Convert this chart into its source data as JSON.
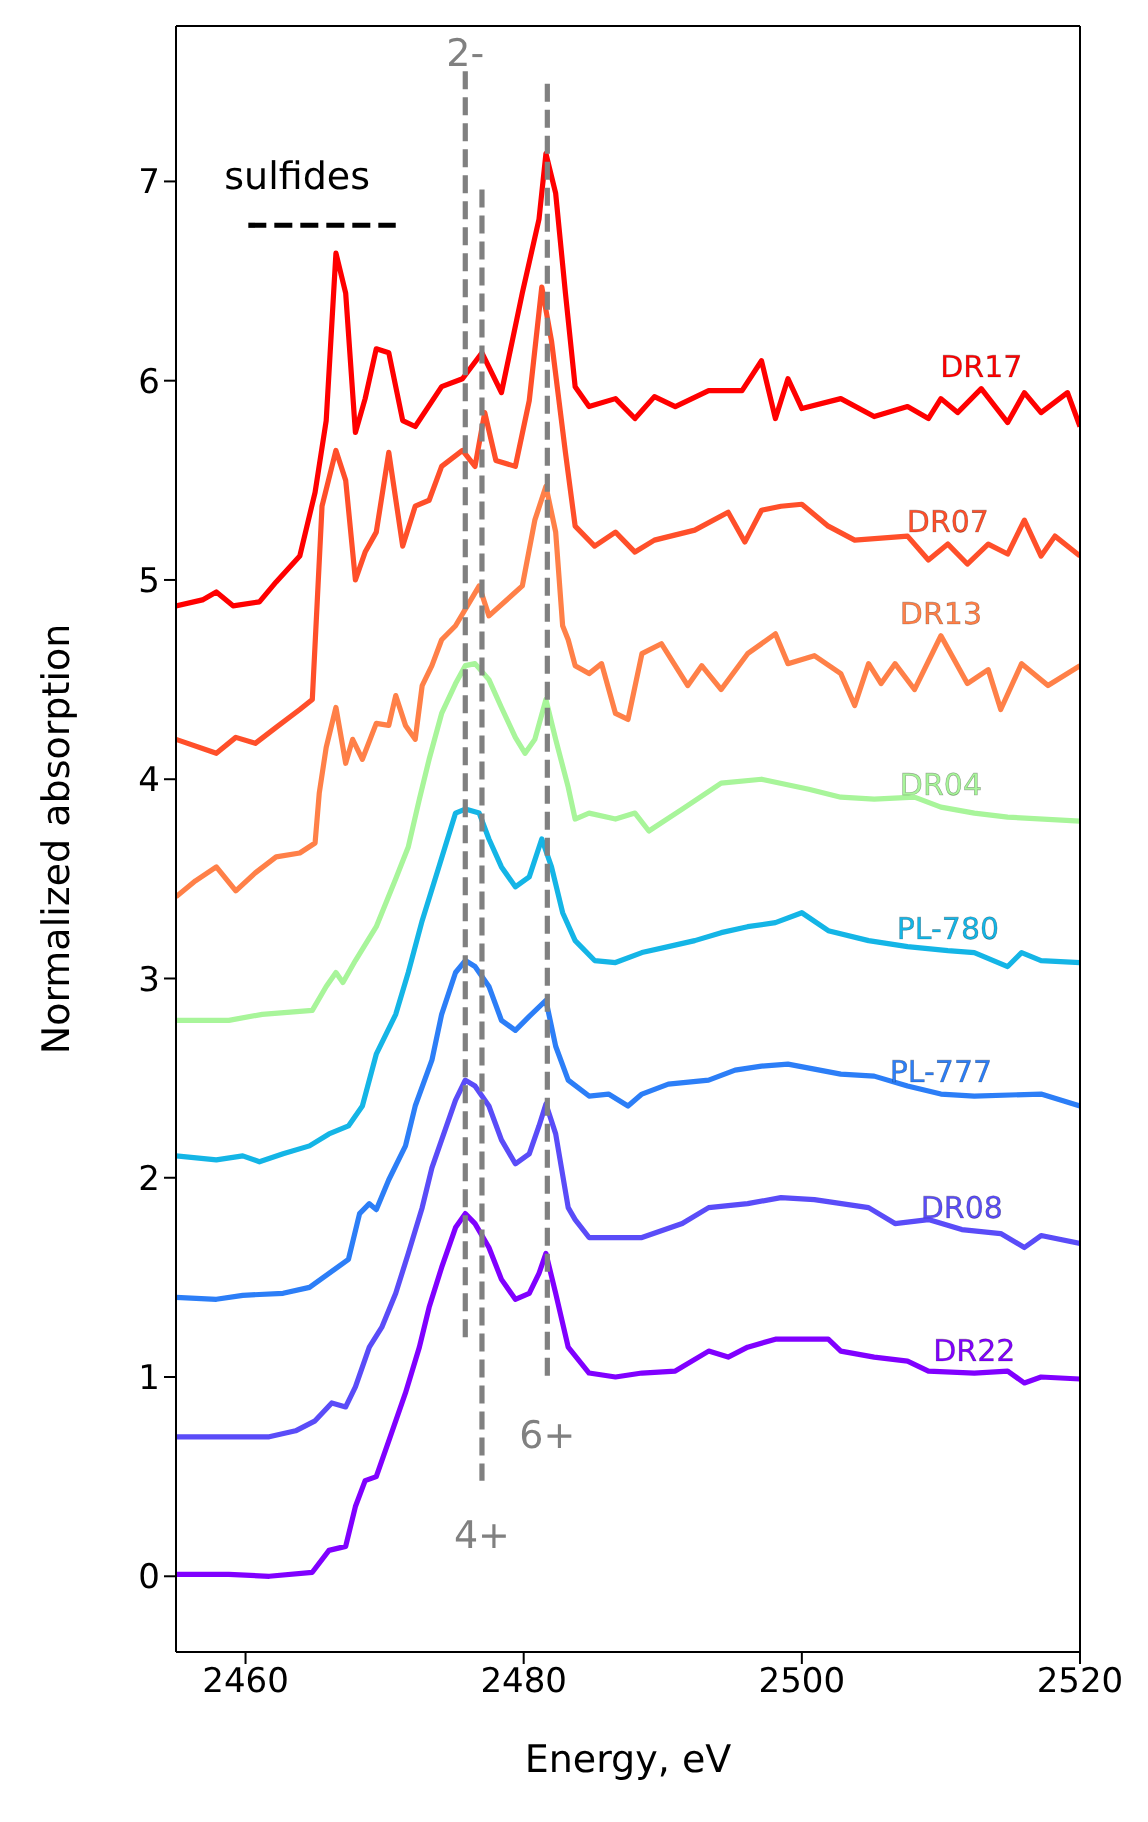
{
  "chart_data": {
    "type": "line",
    "xlabel": "Energy, eV",
    "ylabel": "Normalized absorption",
    "xlim": [
      2455,
      2520
    ],
    "xticks": [
      2460,
      2480,
      2500,
      2520
    ],
    "ylim": [
      -0.38,
      7.78
    ],
    "yticks": [
      0,
      1,
      2,
      3,
      4,
      5,
      6,
      7
    ],
    "grid": false,
    "line_style": "solid",
    "marker": "none",
    "series": [
      {
        "name": "DR17",
        "color": "#ff0000",
        "x": [
          2455,
          2456.9,
          2457.9,
          2459.1,
          2461.0,
          2462.2,
          2463.9,
          2465.0,
          2465.8,
          2466.5,
          2467.2,
          2467.9,
          2468.6,
          2469.4,
          2470.3,
          2471.3,
          2472.2,
          2474.1,
          2475.6,
          2477.0,
          2478.4,
          2479.9,
          2481.1,
          2481.6,
          2482.3,
          2483.0,
          2483.7,
          2484.7,
          2486.6,
          2488.0,
          2489.4,
          2490.9,
          2493.3,
          2495.7,
          2497.1,
          2498.1,
          2499.0,
          2500.0,
          2502.8,
          2505.2,
          2507.6,
          2509.1,
          2510.0,
          2511.2,
          2512.9,
          2514.8,
          2516.0,
          2517.2,
          2519.1,
          2520
        ],
        "values": [
          4.87,
          4.9,
          4.94,
          4.87,
          4.89,
          4.99,
          5.12,
          5.44,
          5.8,
          6.64,
          6.44,
          5.74,
          5.91,
          6.16,
          6.14,
          5.8,
          5.77,
          5.97,
          6.01,
          6.14,
          5.94,
          6.44,
          6.81,
          7.14,
          6.94,
          6.44,
          5.97,
          5.87,
          5.91,
          5.81,
          5.92,
          5.87,
          5.95,
          5.95,
          6.1,
          5.81,
          6.01,
          5.86,
          5.91,
          5.82,
          5.87,
          5.81,
          5.91,
          5.84,
          5.96,
          5.79,
          5.94,
          5.84,
          5.94,
          5.77
        ]
      },
      {
        "name": "DR07",
        "color": "#ff4f2a",
        "x": [
          2455,
          2457.9,
          2459.3,
          2460.7,
          2462.2,
          2463.9,
          2464.8,
          2465.5,
          2466.5,
          2467.2,
          2467.9,
          2468.6,
          2469.4,
          2470.3,
          2471.3,
          2472.2,
          2473.2,
          2474.1,
          2475.6,
          2476.5,
          2477.2,
          2478.0,
          2479.4,
          2480.4,
          2481.3,
          2482.0,
          2483.0,
          2483.7,
          2485.1,
          2486.6,
          2488.0,
          2489.4,
          2492.3,
          2494.7,
          2495.9,
          2497.1,
          2498.5,
          2500.0,
          2501.9,
          2503.8,
          2507.6,
          2509.1,
          2510.5,
          2511.9,
          2513.4,
          2514.8,
          2516.0,
          2517.2,
          2518.2,
          2520
        ],
        "values": [
          4.2,
          4.13,
          4.21,
          4.18,
          4.26,
          4.35,
          4.4,
          5.37,
          5.65,
          5.5,
          5.0,
          5.14,
          5.24,
          5.64,
          5.17,
          5.37,
          5.4,
          5.57,
          5.65,
          5.57,
          5.84,
          5.6,
          5.57,
          5.9,
          6.47,
          6.2,
          5.64,
          5.27,
          5.17,
          5.24,
          5.14,
          5.2,
          5.25,
          5.34,
          5.19,
          5.35,
          5.37,
          5.38,
          5.27,
          5.2,
          5.22,
          5.1,
          5.18,
          5.08,
          5.18,
          5.13,
          5.3,
          5.12,
          5.22,
          5.12
        ]
      },
      {
        "name": "DR13",
        "color": "#ff8048",
        "x": [
          2455,
          2456.4,
          2457.9,
          2459.3,
          2460.7,
          2462.2,
          2463.9,
          2465.0,
          2465.3,
          2465.8,
          2466.5,
          2467.2,
          2467.7,
          2468.4,
          2469.4,
          2470.3,
          2470.8,
          2471.5,
          2472.2,
          2472.7,
          2473.4,
          2474.1,
          2475.1,
          2476.8,
          2477.5,
          2479.9,
          2480.8,
          2481.6,
          2482.3,
          2482.8,
          2483.2,
          2483.7,
          2484.7,
          2485.6,
          2486.6,
          2487.5,
          2488.5,
          2489.9,
          2491.8,
          2492.8,
          2494.2,
          2496.1,
          2498.1,
          2499.0,
          2500.9,
          2502.8,
          2503.8,
          2504.8,
          2505.7,
          2506.7,
          2508.1,
          2510.0,
          2511.9,
          2513.4,
          2514.3,
          2515.8,
          2517.7,
          2520
        ],
        "values": [
          3.41,
          3.49,
          3.56,
          3.44,
          3.53,
          3.61,
          3.63,
          3.68,
          3.93,
          4.16,
          4.36,
          4.08,
          4.2,
          4.1,
          4.28,
          4.27,
          4.42,
          4.27,
          4.2,
          4.47,
          4.57,
          4.7,
          4.77,
          4.97,
          4.82,
          4.97,
          5.3,
          5.47,
          5.24,
          4.77,
          4.7,
          4.57,
          4.53,
          4.58,
          4.33,
          4.3,
          4.63,
          4.68,
          4.47,
          4.57,
          4.45,
          4.63,
          4.73,
          4.58,
          4.62,
          4.53,
          4.37,
          4.58,
          4.48,
          4.58,
          4.45,
          4.72,
          4.48,
          4.55,
          4.35,
          4.58,
          4.47,
          4.57
        ]
      },
      {
        "name": "DR04",
        "color": "#a8f59a",
        "x": [
          2455,
          2458.8,
          2461.2,
          2464.8,
          2465.8,
          2466.5,
          2467.0,
          2467.9,
          2469.4,
          2470.8,
          2471.7,
          2472.5,
          2473.2,
          2474.1,
          2475.1,
          2475.8,
          2476.5,
          2477.5,
          2478.4,
          2479.4,
          2480.1,
          2480.8,
          2481.6,
          2482.3,
          2483.2,
          2483.7,
          2484.7,
          2486.6,
          2488.0,
          2489.0,
          2491.4,
          2494.2,
          2497.1,
          2500.5,
          2502.8,
          2505.2,
          2508.1,
          2510.0,
          2512.4,
          2514.8,
          2520
        ],
        "values": [
          2.79,
          2.79,
          2.82,
          2.84,
          2.96,
          3.03,
          2.98,
          3.09,
          3.26,
          3.5,
          3.66,
          3.9,
          4.1,
          4.33,
          4.48,
          4.57,
          4.58,
          4.5,
          4.36,
          4.21,
          4.13,
          4.2,
          4.4,
          4.2,
          3.96,
          3.8,
          3.83,
          3.8,
          3.83,
          3.74,
          3.85,
          3.98,
          4.0,
          3.95,
          3.91,
          3.9,
          3.91,
          3.86,
          3.83,
          3.81,
          3.79
        ]
      },
      {
        "name": "PL-780",
        "color": "#14b5e6",
        "x": [
          2455,
          2457.9,
          2459.8,
          2461.0,
          2462.7,
          2464.6,
          2466.0,
          2467.4,
          2468.4,
          2469.4,
          2470.8,
          2471.7,
          2472.7,
          2473.9,
          2475.1,
          2475.8,
          2476.8,
          2477.5,
          2478.4,
          2479.4,
          2480.4,
          2481.3,
          2482.0,
          2482.8,
          2483.7,
          2485.1,
          2486.6,
          2488.5,
          2490.4,
          2492.3,
          2494.2,
          2496.1,
          2498.1,
          2500.0,
          2501.9,
          2504.8,
          2507.6,
          2510.5,
          2512.4,
          2514.8,
          2515.8,
          2517.2,
          2520
        ],
        "values": [
          2.11,
          2.09,
          2.11,
          2.08,
          2.12,
          2.16,
          2.22,
          2.26,
          2.36,
          2.62,
          2.82,
          3.03,
          3.29,
          3.56,
          3.83,
          3.85,
          3.83,
          3.7,
          3.56,
          3.46,
          3.51,
          3.7,
          3.56,
          3.33,
          3.19,
          3.09,
          3.08,
          3.13,
          3.16,
          3.19,
          3.23,
          3.26,
          3.28,
          3.33,
          3.24,
          3.19,
          3.16,
          3.14,
          3.13,
          3.06,
          3.13,
          3.09,
          3.08
        ]
      },
      {
        "name": "PL-777",
        "color": "#2c7ef7",
        "x": [
          2455,
          2457.9,
          2459.8,
          2462.7,
          2464.6,
          2466.0,
          2467.4,
          2468.2,
          2468.9,
          2469.4,
          2470.3,
          2471.5,
          2472.2,
          2473.4,
          2474.1,
          2475.1,
          2475.8,
          2476.5,
          2477.5,
          2478.4,
          2479.4,
          2480.4,
          2481.6,
          2482.3,
          2483.2,
          2484.7,
          2486.1,
          2487.5,
          2488.5,
          2490.4,
          2493.3,
          2495.2,
          2497.1,
          2499.0,
          2502.8,
          2505.2,
          2507.6,
          2510.0,
          2512.4,
          2517.2,
          2520
        ],
        "values": [
          1.4,
          1.39,
          1.41,
          1.42,
          1.45,
          1.52,
          1.59,
          1.82,
          1.87,
          1.84,
          1.99,
          2.16,
          2.36,
          2.59,
          2.82,
          3.03,
          3.09,
          3.06,
          2.96,
          2.79,
          2.74,
          2.81,
          2.89,
          2.66,
          2.49,
          2.41,
          2.42,
          2.36,
          2.42,
          2.47,
          2.49,
          2.54,
          2.56,
          2.57,
          2.52,
          2.51,
          2.46,
          2.42,
          2.41,
          2.42,
          2.36
        ]
      },
      {
        "name": "DR08",
        "color": "#5a4cf8",
        "x": [
          2455,
          2457.9,
          2461.7,
          2463.6,
          2465.0,
          2466.2,
          2467.2,
          2467.9,
          2468.9,
          2469.8,
          2470.8,
          2471.7,
          2472.7,
          2473.4,
          2474.1,
          2475.1,
          2475.8,
          2476.5,
          2477.5,
          2478.4,
          2479.4,
          2480.4,
          2481.1,
          2481.6,
          2482.3,
          2483.2,
          2483.7,
          2484.7,
          2486.6,
          2488.5,
          2491.4,
          2493.3,
          2496.1,
          2498.5,
          2500.9,
          2504.8,
          2506.7,
          2509.1,
          2511.5,
          2514.3,
          2516.0,
          2517.2,
          2520
        ],
        "values": [
          0.7,
          0.7,
          0.7,
          0.73,
          0.78,
          0.87,
          0.85,
          0.95,
          1.15,
          1.25,
          1.42,
          1.62,
          1.85,
          2.05,
          2.19,
          2.39,
          2.49,
          2.46,
          2.36,
          2.19,
          2.07,
          2.12,
          2.26,
          2.37,
          2.22,
          1.85,
          1.79,
          1.7,
          1.7,
          1.7,
          1.77,
          1.85,
          1.87,
          1.9,
          1.89,
          1.85,
          1.77,
          1.79,
          1.74,
          1.72,
          1.65,
          1.71,
          1.67
        ]
      },
      {
        "name": "DR22",
        "color": "#8000ff",
        "x": [
          2455,
          2458.8,
          2461.7,
          2464.8,
          2466.0,
          2467.2,
          2467.9,
          2468.6,
          2469.4,
          2470.3,
          2471.5,
          2472.5,
          2473.2,
          2474.1,
          2475.1,
          2475.8,
          2476.5,
          2477.5,
          2478.4,
          2479.4,
          2480.4,
          2481.1,
          2481.6,
          2482.3,
          2483.2,
          2484.7,
          2486.6,
          2488.5,
          2490.9,
          2493.3,
          2494.7,
          2496.1,
          2498.1,
          2501.9,
          2502.8,
          2505.2,
          2507.6,
          2509.1,
          2512.4,
          2514.8,
          2516.0,
          2517.2,
          2520
        ],
        "values": [
          0.01,
          0.01,
          0.0,
          0.02,
          0.13,
          0.15,
          0.35,
          0.48,
          0.5,
          0.68,
          0.92,
          1.15,
          1.35,
          1.55,
          1.75,
          1.82,
          1.77,
          1.65,
          1.49,
          1.39,
          1.42,
          1.52,
          1.62,
          1.42,
          1.15,
          1.02,
          1.0,
          1.02,
          1.03,
          1.13,
          1.1,
          1.15,
          1.19,
          1.19,
          1.13,
          1.1,
          1.08,
          1.03,
          1.02,
          1.03,
          0.97,
          1.0,
          0.99
        ]
      },
      {
        "name": "sulfides",
        "color": "#000000",
        "line_style": "dashed",
        "x": [
          2460.2,
          2470.8
        ],
        "values": [
          6.78,
          6.78
        ]
      },
      {
        "name": "2-",
        "color": "#808080",
        "line_style": "dashed",
        "x": [
          2475.8,
          2475.8
        ],
        "values": [
          1.2,
          7.56
        ]
      },
      {
        "name": "4+",
        "color": "#808080",
        "line_style": "dashed",
        "x": [
          2477.0,
          2477.0
        ],
        "values": [
          6.96,
          0.48
        ]
      },
      {
        "name": "6+",
        "color": "#808080",
        "line_style": "dashed",
        "x": [
          2481.7,
          2481.7
        ],
        "values": [
          7.49,
          0.98
        ]
      }
    ]
  }
}
